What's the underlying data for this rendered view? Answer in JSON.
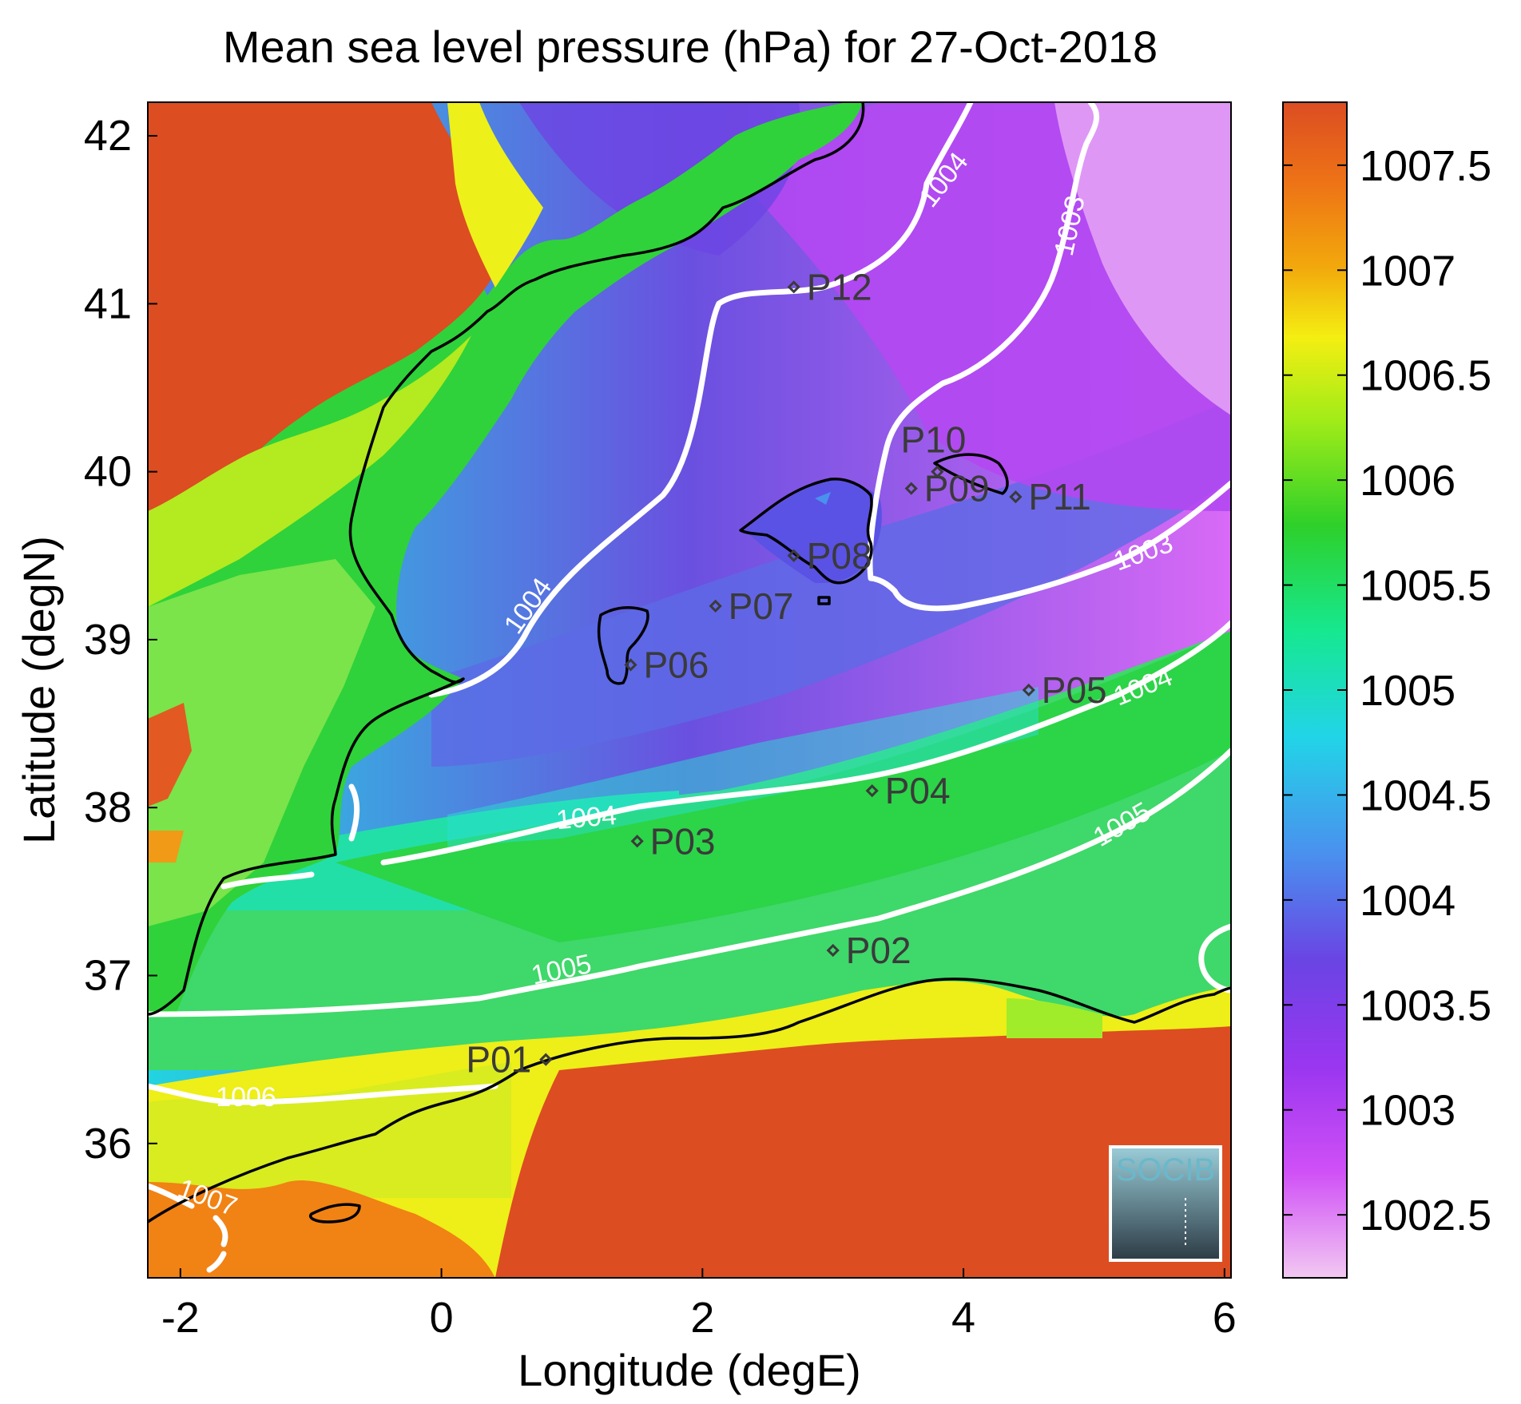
{
  "title": "Mean sea level pressure (hPa) for 27-Oct-2018",
  "axes": {
    "xlabel": "Longitude (degE)",
    "ylabel": "Latitude (degN)",
    "xticks": [
      "-2",
      "0",
      "2",
      "4",
      "6"
    ],
    "yticks": [
      "42",
      "41",
      "40",
      "39",
      "38",
      "37",
      "36"
    ]
  },
  "colorbar": {
    "ticks": [
      "1007.5",
      "1007",
      "1006.5",
      "1006",
      "1005.5",
      "1005",
      "1004.5",
      "1004",
      "1003.5",
      "1003",
      "1002.5"
    ],
    "range": [
      1002.2,
      1007.8
    ]
  },
  "contour_labels": [
    "1004",
    "1003",
    "1004",
    "1003",
    "1004",
    "1004",
    "1005",
    "1005",
    "1006",
    "1007"
  ],
  "stations": [
    {
      "id": "P01",
      "lon": 0.8,
      "lat": 36.5
    },
    {
      "id": "P02",
      "lon": 3.0,
      "lat": 37.15
    },
    {
      "id": "P03",
      "lon": 1.5,
      "lat": 37.8
    },
    {
      "id": "P04",
      "lon": 3.3,
      "lat": 38.1
    },
    {
      "id": "P05",
      "lon": 4.5,
      "lat": 38.7
    },
    {
      "id": "P06",
      "lon": 1.45,
      "lat": 38.85
    },
    {
      "id": "P07",
      "lon": 2.1,
      "lat": 39.2
    },
    {
      "id": "P08",
      "lon": 2.7,
      "lat": 39.5
    },
    {
      "id": "P09",
      "lon": 3.6,
      "lat": 39.9
    },
    {
      "id": "P10",
      "lon": 3.8,
      "lat": 40.0
    },
    {
      "id": "P11",
      "lon": 4.4,
      "lat": 39.85
    },
    {
      "id": "P12",
      "lon": 2.7,
      "lat": 41.1
    }
  ],
  "logo": {
    "text": "SOCIB"
  },
  "colors": {
    "high": "#dc4d22",
    "orange": "#f08a0c",
    "yellow": "#f4ee12",
    "green": "#2ed02a",
    "cyan": "#22dede",
    "blue": "#4aa4ee",
    "indigo": "#6a4ce4",
    "purple": "#9636f0",
    "magenta": "#ce4af6",
    "pink": "#f2c8f2",
    "contour": "#ffffff",
    "coast": "#000000"
  }
}
